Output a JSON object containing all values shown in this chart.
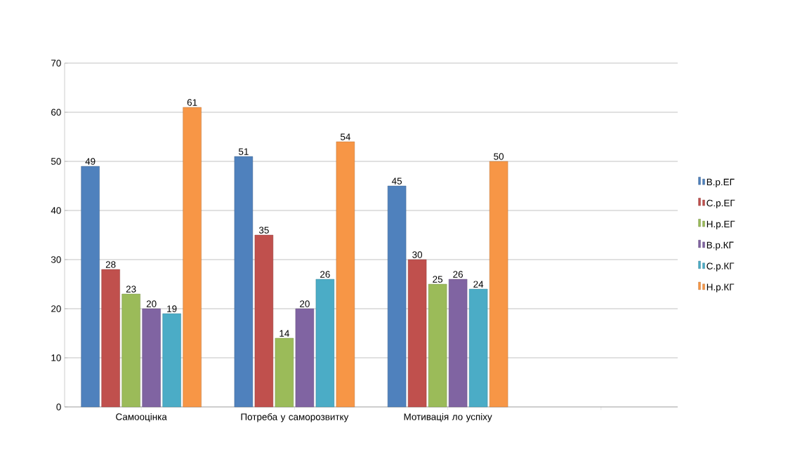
{
  "chart_data": {
    "type": "bar",
    "categories": [
      "Самооцінка",
      "Потреба у саморозвитку",
      "Мотивація ло успіху",
      null
    ],
    "series": [
      {
        "name": "В.р.ЕГ",
        "color": "#4f81bd",
        "values": [
          49,
          51,
          45,
          null
        ]
      },
      {
        "name": "С.р.ЕГ",
        "color": "#c0504d",
        "values": [
          28,
          35,
          30,
          null
        ]
      },
      {
        "name": "Н.р.ЕГ",
        "color": "#9bbb59",
        "values": [
          23,
          14,
          25,
          null
        ]
      },
      {
        "name": "В.р.КГ",
        "color": "#8064a2",
        "values": [
          20,
          20,
          26,
          null
        ]
      },
      {
        "name": "С.р.КГ",
        "color": "#4bacc6",
        "values": [
          19,
          26,
          24,
          null
        ]
      },
      {
        "name": "Н.р.КГ",
        "color": "#f79646",
        "values": [
          61,
          54,
          50,
          null
        ]
      }
    ],
    "ylim": [
      0,
      70
    ],
    "yticks": [
      0,
      10,
      20,
      30,
      40,
      50,
      60,
      70
    ],
    "grid": "y",
    "legend": "right",
    "data_labels": true
  }
}
